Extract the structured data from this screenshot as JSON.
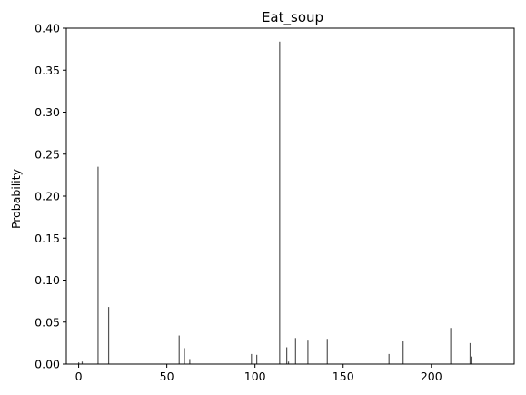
{
  "chart_data": {
    "type": "bar",
    "title": "Eat_soup",
    "xlabel": "",
    "ylabel": "Probability",
    "xlim": [
      -7,
      247
    ],
    "ylim": [
      0,
      0.4
    ],
    "xticks": [
      0,
      50,
      100,
      150,
      200
    ],
    "yticks": [
      0.0,
      0.05,
      0.1,
      0.15,
      0.2,
      0.25,
      0.3,
      0.35,
      0.4
    ],
    "ytick_labels": [
      "0.00",
      "0.05",
      "0.10",
      "0.15",
      "0.20",
      "0.25",
      "0.30",
      "0.35",
      "0.40"
    ],
    "xtick_labels": [
      "0",
      "50",
      "100",
      "150",
      "200"
    ],
    "bar_color": "#555555",
    "grid": false,
    "x": [
      0,
      2,
      11,
      17,
      57,
      60,
      63,
      98,
      101,
      114,
      118,
      119,
      123,
      130,
      141,
      176,
      184,
      211,
      222,
      223
    ],
    "values": [
      0.002,
      0.003,
      0.235,
      0.068,
      0.034,
      0.019,
      0.006,
      0.012,
      0.011,
      0.384,
      0.02,
      0.003,
      0.031,
      0.029,
      0.03,
      0.012,
      0.027,
      0.043,
      0.025,
      0.009
    ]
  }
}
